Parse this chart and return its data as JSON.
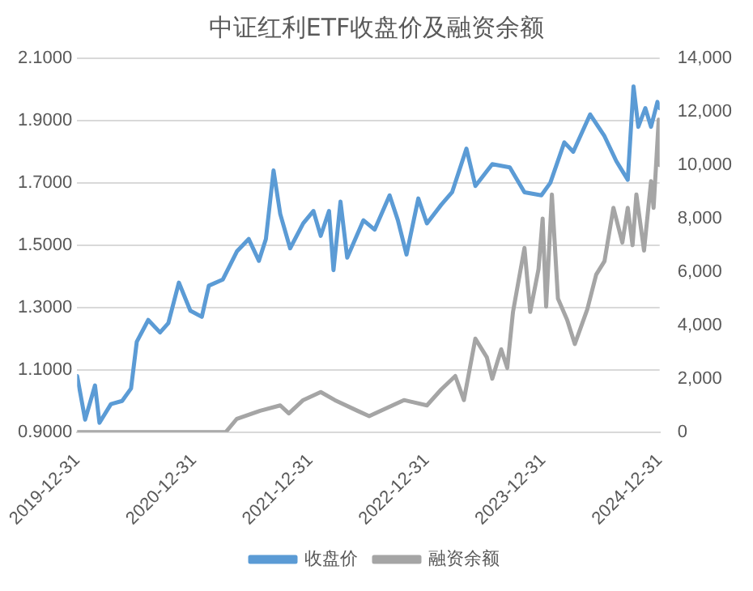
{
  "chart_data": {
    "type": "line",
    "title": "中证红利ETF收盘价及融资余额",
    "xlim": [
      "2019-12-31",
      "2024-12-31"
    ],
    "xticks": [
      "2019-12-31",
      "2020-12-31",
      "2021-12-31",
      "2022-12-31",
      "2023-12-31",
      "2024-12-31"
    ],
    "ylim": [
      0.9,
      2.1
    ],
    "yticks": [
      {
        "value": 0.9,
        "label": "0.9000"
      },
      {
        "value": 1.1,
        "label": "1.1000"
      },
      {
        "value": 1.3,
        "label": "1.3000"
      },
      {
        "value": 1.5,
        "label": "1.5000"
      },
      {
        "value": 1.7,
        "label": "1.7000"
      },
      {
        "value": 1.9,
        "label": "1.9000"
      },
      {
        "value": 2.1,
        "label": "2.1000"
      }
    ],
    "y2lim": [
      0,
      14000
    ],
    "y2ticks": [
      0,
      {
        "value": 2000,
        "label": "2,000"
      },
      {
        "value": 4000,
        "label": "4,000"
      },
      {
        "value": 6000,
        "label": "6,000"
      },
      {
        "value": 8000,
        "label": "8,000"
      },
      {
        "value": 10000,
        "label": "10,000"
      },
      {
        "value": 12000,
        "label": "12,000"
      },
      {
        "value": 14000,
        "label": "14,000"
      }
    ],
    "grid": "y",
    "legend": "bottom",
    "marker": "none",
    "line_style": "solid",
    "series": [
      {
        "name": "收盘价",
        "color": "#5b9bd5",
        "x": [
          "2019-12-31",
          "2020-01-25",
          "2020-02-25",
          "2020-03-10",
          "2020-04-15",
          "2020-05-20",
          "2020-06-17",
          "2020-07-05",
          "2020-08-10",
          "2020-09-16",
          "2020-10-12",
          "2020-11-14",
          "2020-12-20",
          "2021-01-25",
          "2021-02-16",
          "2021-04-01",
          "2021-05-15",
          "2021-06-21",
          "2021-07-23",
          "2021-08-14",
          "2021-09-07",
          "2021-09-28",
          "2021-10-29",
          "2021-12-09",
          "2022-01-10",
          "2022-02-02",
          "2022-02-28",
          "2022-03-14",
          "2022-04-05",
          "2022-04-26",
          "2022-06-16",
          "2022-07-21",
          "2022-09-06",
          "2022-10-02",
          "2022-10-29",
          "2022-12-05",
          "2023-01-01",
          "2023-02-15",
          "2023-03-21",
          "2023-05-05",
          "2023-06-02",
          "2023-07-25",
          "2023-09-18",
          "2023-11-03",
          "2023-12-26",
          "2024-01-23",
          "2024-03-07",
          "2024-04-04",
          "2024-05-27",
          "2024-07-11",
          "2024-08-17",
          "2024-09-22",
          "2024-10-10",
          "2024-10-25",
          "2024-11-16",
          "2024-12-04",
          "2024-12-24",
          "2024-12-31"
        ],
        "values": [
          1.08,
          0.94,
          1.05,
          0.93,
          0.99,
          1.0,
          1.04,
          1.19,
          1.26,
          1.22,
          1.25,
          1.38,
          1.29,
          1.27,
          1.37,
          1.39,
          1.48,
          1.52,
          1.45,
          1.52,
          1.74,
          1.6,
          1.49,
          1.57,
          1.61,
          1.53,
          1.61,
          1.42,
          1.64,
          1.46,
          1.58,
          1.55,
          1.66,
          1.58,
          1.47,
          1.65,
          1.57,
          1.63,
          1.67,
          1.81,
          1.69,
          1.76,
          1.75,
          1.67,
          1.66,
          1.7,
          1.83,
          1.8,
          1.92,
          1.85,
          1.77,
          1.71,
          2.01,
          1.88,
          1.94,
          1.88,
          1.96,
          1.94
        ]
      },
      {
        "name": "融资余额",
        "color": "#a5a5a5",
        "axis": "y2",
        "x": [
          "2019-12-31",
          "2021-04-10",
          "2021-05-15",
          "2021-07-27",
          "2021-09-28",
          "2021-10-25",
          "2021-12-09",
          "2022-02-02",
          "2022-03-18",
          "2022-05-28",
          "2022-07-04",
          "2022-10-21",
          "2023-01-01",
          "2023-02-15",
          "2023-03-31",
          "2023-04-27",
          "2023-06-02",
          "2023-07-08",
          "2023-07-25",
          "2023-08-22",
          "2023-09-10",
          "2023-09-28",
          "2023-11-03",
          "2023-11-21",
          "2023-12-17",
          "2023-12-30",
          "2024-01-10",
          "2024-01-28",
          "2024-02-16",
          "2024-03-16",
          "2024-04-09",
          "2024-05-18",
          "2024-06-15",
          "2024-07-11",
          "2024-08-08",
          "2024-09-05",
          "2024-09-22",
          "2024-10-07",
          "2024-10-19",
          "2024-11-12",
          "2024-12-04",
          "2024-12-12",
          "2024-12-28",
          "2024-12-31"
        ],
        "values": [
          0,
          0,
          500,
          800,
          1000,
          700,
          1200,
          1500,
          1200,
          800,
          600,
          1200,
          1000,
          1600,
          2100,
          1200,
          3500,
          2800,
          2000,
          3100,
          2400,
          4500,
          6900,
          4500,
          6100,
          8000,
          4700,
          8900,
          5000,
          4200,
          3300,
          4600,
          5900,
          6400,
          8400,
          7100,
          8400,
          7000,
          8900,
          6800,
          9400,
          8400,
          11700,
          10000
        ]
      }
    ]
  }
}
